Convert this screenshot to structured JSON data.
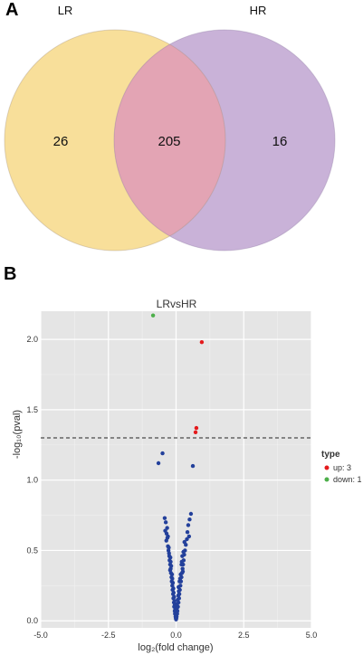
{
  "panels": {
    "a": "A",
    "b": "B"
  },
  "chart_data": [
    {
      "type": "venn",
      "sets": [
        {
          "name": "LR",
          "only": 26,
          "color": "#f8df9a"
        },
        {
          "name": "HR",
          "only": 16,
          "color": "#c9b2d8"
        }
      ],
      "intersection": 205,
      "intersection_color": "#e3a4b4"
    },
    {
      "type": "scatter",
      "title": "LRvsHR",
      "xlabel": "log₂(fold change)",
      "ylabel": "-log₁₀(pval)",
      "xlim": [
        -5.0,
        5.0
      ],
      "ylim": [
        -0.05,
        2.2
      ],
      "xticks": [
        "-5.0",
        "-2.5",
        "0.0",
        "2.5",
        "5.0"
      ],
      "xtick_values": [
        -5.0,
        -2.5,
        0.0,
        2.5,
        5.0
      ],
      "yticks": [
        "0.0",
        "0.5",
        "1.0",
        "1.5",
        "2.0"
      ],
      "ytick_values": [
        0.0,
        0.5,
        1.0,
        1.5,
        2.0
      ],
      "threshold_y": 1.3,
      "grid": true,
      "legend": {
        "title": "type",
        "placement": "right",
        "entries": [
          {
            "label": "up: 3",
            "color": "#e41a1c"
          },
          {
            "label": "down: 1",
            "color": "#4daf4a"
          }
        ]
      },
      "series": [
        {
          "name": "up: 3",
          "color": "#e41a1c",
          "points": [
            [
              0.95,
              1.98
            ],
            [
              0.75,
              1.37
            ],
            [
              0.72,
              1.34
            ]
          ]
        },
        {
          "name": "down: 1",
          "color": "#4daf4a",
          "points": [
            [
              -0.85,
              2.17
            ]
          ]
        },
        {
          "color": "#23409b",
          "points": [
            [
              -0.5,
              1.19
            ],
            [
              -0.65,
              1.12
            ],
            [
              0.62,
              1.1
            ],
            [
              -0.42,
              0.73
            ],
            [
              -0.38,
              0.7
            ],
            [
              -0.33,
              0.66
            ],
            [
              0.55,
              0.76
            ],
            [
              0.5,
              0.72
            ],
            [
              0.45,
              0.68
            ],
            [
              -0.35,
              0.62
            ],
            [
              -0.3,
              0.6
            ],
            [
              0.42,
              0.63
            ],
            [
              -0.36,
              0.57
            ],
            [
              0.4,
              0.58
            ],
            [
              -0.3,
              0.53
            ],
            [
              0.36,
              0.54
            ],
            [
              -0.28,
              0.5
            ],
            [
              0.33,
              0.5
            ],
            [
              -0.25,
              0.46
            ],
            [
              0.3,
              0.47
            ],
            [
              -0.24,
              0.43
            ],
            [
              0.28,
              0.43
            ],
            [
              -0.22,
              0.4
            ],
            [
              0.26,
              0.4
            ],
            [
              -0.2,
              0.37
            ],
            [
              0.24,
              0.37
            ],
            [
              -0.19,
              0.34
            ],
            [
              0.22,
              0.34
            ],
            [
              -0.17,
              0.31
            ],
            [
              0.2,
              0.31
            ],
            [
              -0.16,
              0.28
            ],
            [
              0.18,
              0.28
            ],
            [
              -0.14,
              0.25
            ],
            [
              0.16,
              0.25
            ],
            [
              -0.13,
              0.22
            ],
            [
              0.14,
              0.22
            ],
            [
              -0.11,
              0.19
            ],
            [
              0.12,
              0.19
            ],
            [
              -0.1,
              0.16
            ],
            [
              0.11,
              0.16
            ],
            [
              -0.08,
              0.13
            ],
            [
              0.09,
              0.13
            ],
            [
              -0.07,
              0.1
            ],
            [
              0.07,
              0.1
            ],
            [
              -0.05,
              0.07
            ],
            [
              0.05,
              0.07
            ],
            [
              -0.04,
              0.05
            ],
            [
              0.04,
              0.05
            ],
            [
              -0.02,
              0.03
            ],
            [
              0.02,
              0.03
            ],
            [
              0.0,
              0.01
            ],
            [
              -0.01,
              0.02
            ],
            [
              0.01,
              0.02
            ],
            [
              0.0,
              0.04
            ],
            [
              -0.03,
              0.08
            ],
            [
              0.03,
              0.09
            ],
            [
              -0.06,
              0.14
            ],
            [
              0.06,
              0.15
            ],
            [
              -0.09,
              0.2
            ],
            [
              0.1,
              0.21
            ],
            [
              -0.12,
              0.27
            ],
            [
              0.13,
              0.28
            ],
            [
              -0.15,
              0.33
            ],
            [
              0.17,
              0.33
            ],
            [
              -0.18,
              0.39
            ],
            [
              0.2,
              0.4
            ],
            [
              -0.21,
              0.45
            ],
            [
              0.23,
              0.46
            ],
            [
              -0.27,
              0.52
            ],
            [
              0.31,
              0.56
            ],
            [
              -0.32,
              0.59
            ],
            [
              -0.4,
              0.64
            ],
            [
              0.48,
              0.6
            ],
            [
              -0.05,
              0.11
            ],
            [
              0.04,
              0.12
            ],
            [
              -0.03,
              0.06
            ],
            [
              0.02,
              0.06
            ],
            [
              -0.1,
              0.23
            ],
            [
              0.09,
              0.24
            ],
            [
              -0.14,
              0.3
            ],
            [
              0.15,
              0.3
            ],
            [
              -0.2,
              0.42
            ],
            [
              0.21,
              0.42
            ],
            [
              -0.26,
              0.48
            ],
            [
              0.27,
              0.49
            ],
            [
              -0.22,
              0.36
            ],
            [
              0.25,
              0.35
            ],
            [
              -0.07,
              0.17
            ],
            [
              0.08,
              0.18
            ]
          ]
        }
      ]
    }
  ]
}
